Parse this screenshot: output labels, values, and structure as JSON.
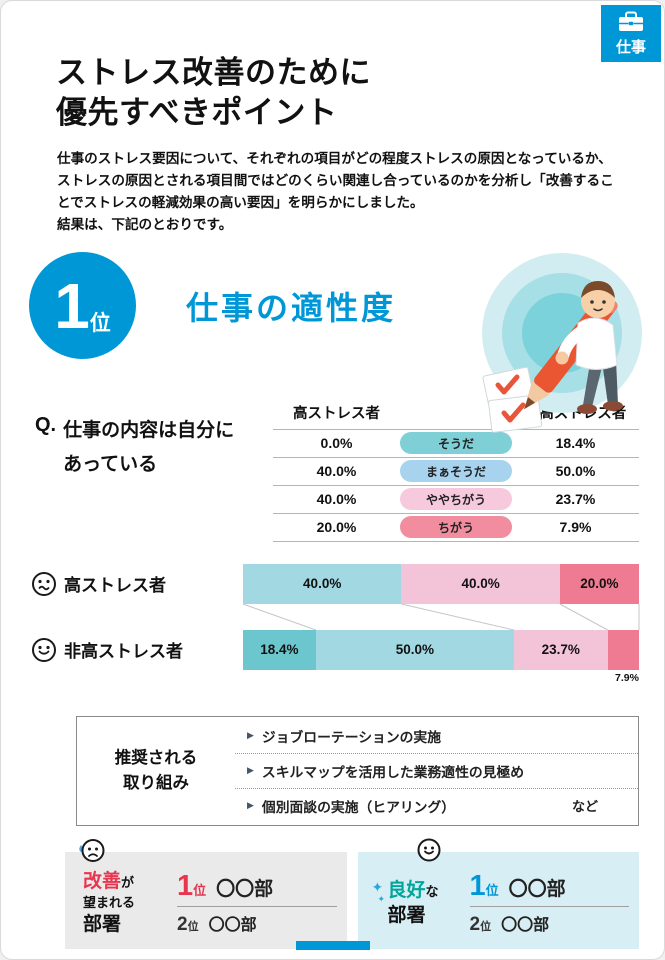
{
  "colors": {
    "accent_blue": "#0097d7",
    "accent_red": "#e8364f",
    "good_teal": "#00a59b",
    "panel_bad_bg": "#eaeaea",
    "panel_good_bg": "#d7eef4"
  },
  "icons": {
    "sparkle": "✦",
    "bullet": "▶"
  },
  "corner_tab": {
    "label": "仕事"
  },
  "header": {
    "title_line1": "ストレス改善のために",
    "title_line2": "優先すべきポイント",
    "intro_main": "仕事のストレス要因について、それぞれの項目がどの程度ストレスの原因となっているか、ストレスの原因とされる項目間ではどのくらい関連し合っているのかを分析し「改善することでストレスの軽減効果の高い要因」を明らかにしました。",
    "intro_last": "結果は、下記のとおりです。"
  },
  "rank": {
    "number": "1",
    "suffix": "位",
    "title": "仕事の適性度"
  },
  "question": {
    "prefix": "Q.",
    "line1": "仕事の内容は自分に",
    "line2": "あっている"
  },
  "answer_table": {
    "col_high": "高ストレス者",
    "col_low": "非高ストレス者",
    "rows": [
      {
        "high": "0.0%",
        "label": "そうだ",
        "low": "18.4%",
        "pill_color": "#7ed0d6"
      },
      {
        "high": "40.0%",
        "label": "まぁそうだ",
        "low": "50.0%",
        "pill_color": "#a8d3ef"
      },
      {
        "high": "40.0%",
        "label": "ややちがう",
        "low": "23.7%",
        "pill_color": "#f6c9dc"
      },
      {
        "high": "20.0%",
        "label": "ちがう",
        "low": "7.9%",
        "pill_color": "#f18d9f"
      }
    ]
  },
  "chart_data": {
    "type": "bar",
    "stacked": true,
    "orientation": "horizontal",
    "unit": "%",
    "xlim": [
      0,
      100
    ],
    "categories": [
      "高ストレス者",
      "非高ストレス者"
    ],
    "series": [
      {
        "name": "そうだ",
        "color": "#6cc6ce",
        "values": [
          0.0,
          18.4
        ]
      },
      {
        "name": "まぁそうだ",
        "color": "#a2d8e1",
        "values": [
          40.0,
          50.0
        ]
      },
      {
        "name": "ややちがう",
        "color": "#f3c3d8",
        "values": [
          40.0,
          23.7
        ]
      },
      {
        "name": "ちがう",
        "color": "#ee7b92",
        "values": [
          20.0,
          7.9
        ]
      }
    ]
  },
  "recommend": {
    "label_line1": "推奨される",
    "label_line2": "取り組み",
    "items": [
      "ジョブローテーションの実施",
      "スキルマップを活用した業務適性の見極め",
      "個別面談の実施（ヒアリング）"
    ],
    "etc": "など"
  },
  "bottom": {
    "bad": {
      "word": "改善",
      "word_suffix": "が",
      "line2": "望まれる",
      "line3": "部署",
      "rank1_num": "1",
      "rank1_unit": "位",
      "rank1_name": "〇〇部",
      "rank2_num": "2",
      "rank2_unit": "位",
      "rank2_name": "〇〇部"
    },
    "good": {
      "word": "良好",
      "word_suffix": "な",
      "line2": "部署",
      "rank1_num": "1",
      "rank1_unit": "位",
      "rank1_name": "〇〇部",
      "rank2_num": "2",
      "rank2_unit": "位",
      "rank2_name": "〇〇部"
    }
  }
}
